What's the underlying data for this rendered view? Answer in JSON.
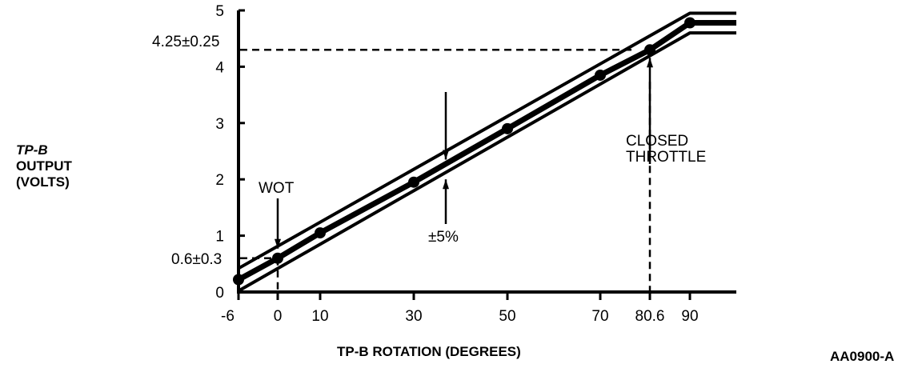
{
  "chart_data": {
    "type": "line",
    "title": "",
    "xlabel": "TP-B ROTATION (DEGREES)",
    "ylabel_lines": [
      "TP-B",
      "OUTPUT",
      "(VOLTS)"
    ],
    "x_ticks": [
      -6,
      0,
      10,
      30,
      50,
      70,
      80.6,
      90
    ],
    "x_tick_labels": [
      "-6",
      "0",
      "10",
      "30",
      "50",
      "70",
      "80.6",
      "90"
    ],
    "y_ticks": [
      0,
      1,
      2,
      3,
      4,
      5
    ],
    "y_tick_labels": [
      "0",
      "1",
      "2",
      "3",
      "4",
      "5"
    ],
    "ylim": [
      0,
      5
    ],
    "grid": false,
    "series": [
      {
        "name": "nominal",
        "x": [
          -6,
          0,
          10,
          30,
          50,
          70,
          80.6,
          90,
          100
        ],
        "y": [
          0.22,
          0.6,
          1.05,
          1.95,
          2.9,
          3.85,
          4.3,
          4.78,
          4.78
        ],
        "markers": [
          -6,
          0,
          10,
          30,
          50,
          70,
          80.6,
          90
        ]
      },
      {
        "name": "upper tolerance",
        "x": [
          -6,
          90,
          100
        ],
        "y": [
          0.42,
          4.95,
          4.95
        ]
      },
      {
        "name": "lower tolerance",
        "x": [
          -6,
          90,
          100
        ],
        "y": [
          0.02,
          4.6,
          4.6
        ]
      }
    ],
    "annotations": {
      "wot": "WOT",
      "wot_value": "0.6±0.3",
      "closed_line1": "CLOSED",
      "closed_line2": "THROTTLE",
      "closed_value": "4.25±0.25",
      "tolerance": "±5%"
    },
    "figure_id": "AA0900-A"
  }
}
